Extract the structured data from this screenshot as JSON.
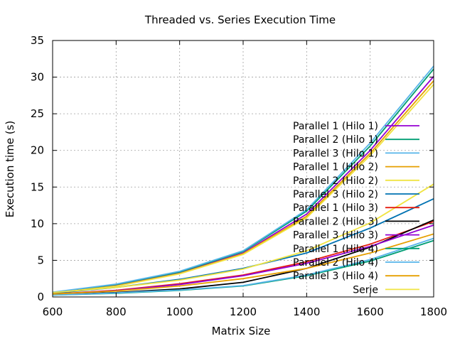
{
  "chart_data": {
    "type": "line",
    "title": "Threaded vs. Series Execution Time",
    "xlabel": "Matrix Size",
    "ylabel": "Execution time (s)",
    "xlim": [
      600,
      1800
    ],
    "ylim": [
      0,
      35
    ],
    "xticks": [
      "600",
      "800",
      "1000",
      "1200",
      "1400",
      "1600",
      "1800"
    ],
    "yticks": [
      "0",
      "5",
      "10",
      "15",
      "20",
      "25",
      "30",
      "35"
    ],
    "grid": true,
    "legend_position": "right",
    "x": [
      600,
      800,
      1000,
      1200,
      1400,
      1600,
      1800
    ],
    "series": [
      {
        "name": "Parallel 1 (Hilo 1)",
        "color": "#9400d3",
        "values": [
          0.55,
          1.6,
          3.3,
          6.0,
          11.3,
          20.0,
          30.1
        ]
      },
      {
        "name": "Parallel 2 (Hilo 1)",
        "color": "#009e73",
        "values": [
          0.6,
          1.7,
          3.4,
          6.2,
          11.7,
          20.6,
          31.1
        ]
      },
      {
        "name": "Parallel 3 (Hilo 1)",
        "color": "#56b4e9",
        "values": [
          0.65,
          1.75,
          3.5,
          6.3,
          11.9,
          21.0,
          31.5
        ]
      },
      {
        "name": "Parallel 1 (Hilo 2)",
        "color": "#e69f00",
        "values": [
          0.5,
          1.5,
          3.2,
          5.9,
          11.0,
          19.6,
          29.5
        ]
      },
      {
        "name": "Parallel 2 (Hilo 2)",
        "color": "#f0e442",
        "values": [
          0.5,
          1.45,
          3.15,
          5.8,
          10.8,
          19.3,
          29.0
        ]
      },
      {
        "name": "Parallel 3 (Hilo 2)",
        "color": "#0072b2",
        "values": [
          0.5,
          1.3,
          2.4,
          3.9,
          6.0,
          9.4,
          13.4
        ]
      },
      {
        "name": "Parallel 1 (Hilo 3)",
        "color": "#e51e10",
        "values": [
          0.4,
          0.9,
          1.8,
          3.0,
          4.8,
          7.2,
          10.3
        ]
      },
      {
        "name": "Parallel 2 (Hilo 3)",
        "color": "#000000",
        "values": [
          0.3,
          0.6,
          1.1,
          2.0,
          3.9,
          6.8,
          10.5
        ]
      },
      {
        "name": "Parallel 3 (Hilo 3)",
        "color": "#9400d3",
        "values": [
          0.35,
          0.85,
          1.7,
          2.9,
          4.6,
          6.9,
          9.8
        ]
      },
      {
        "name": "Parallel 1 (Hilo 4)",
        "color": "#009e73",
        "values": [
          0.25,
          0.5,
          0.9,
          1.5,
          2.9,
          4.9,
          7.7
        ]
      },
      {
        "name": "Parallel 2 (Hilo 4)",
        "color": "#56b4e9",
        "values": [
          0.25,
          0.55,
          0.95,
          1.55,
          3.0,
          5.1,
          8.0
        ]
      },
      {
        "name": "Parallel 3 (Hilo 4)",
        "color": "#e69f00",
        "values": [
          0.4,
          0.8,
          1.5,
          2.5,
          3.9,
          6.0,
          8.6
        ]
      },
      {
        "name": "Serie",
        "color": "#f0e442",
        "values": [
          0.6,
          1.3,
          2.3,
          3.8,
          6.3,
          10.1,
          15.4
        ]
      }
    ]
  }
}
